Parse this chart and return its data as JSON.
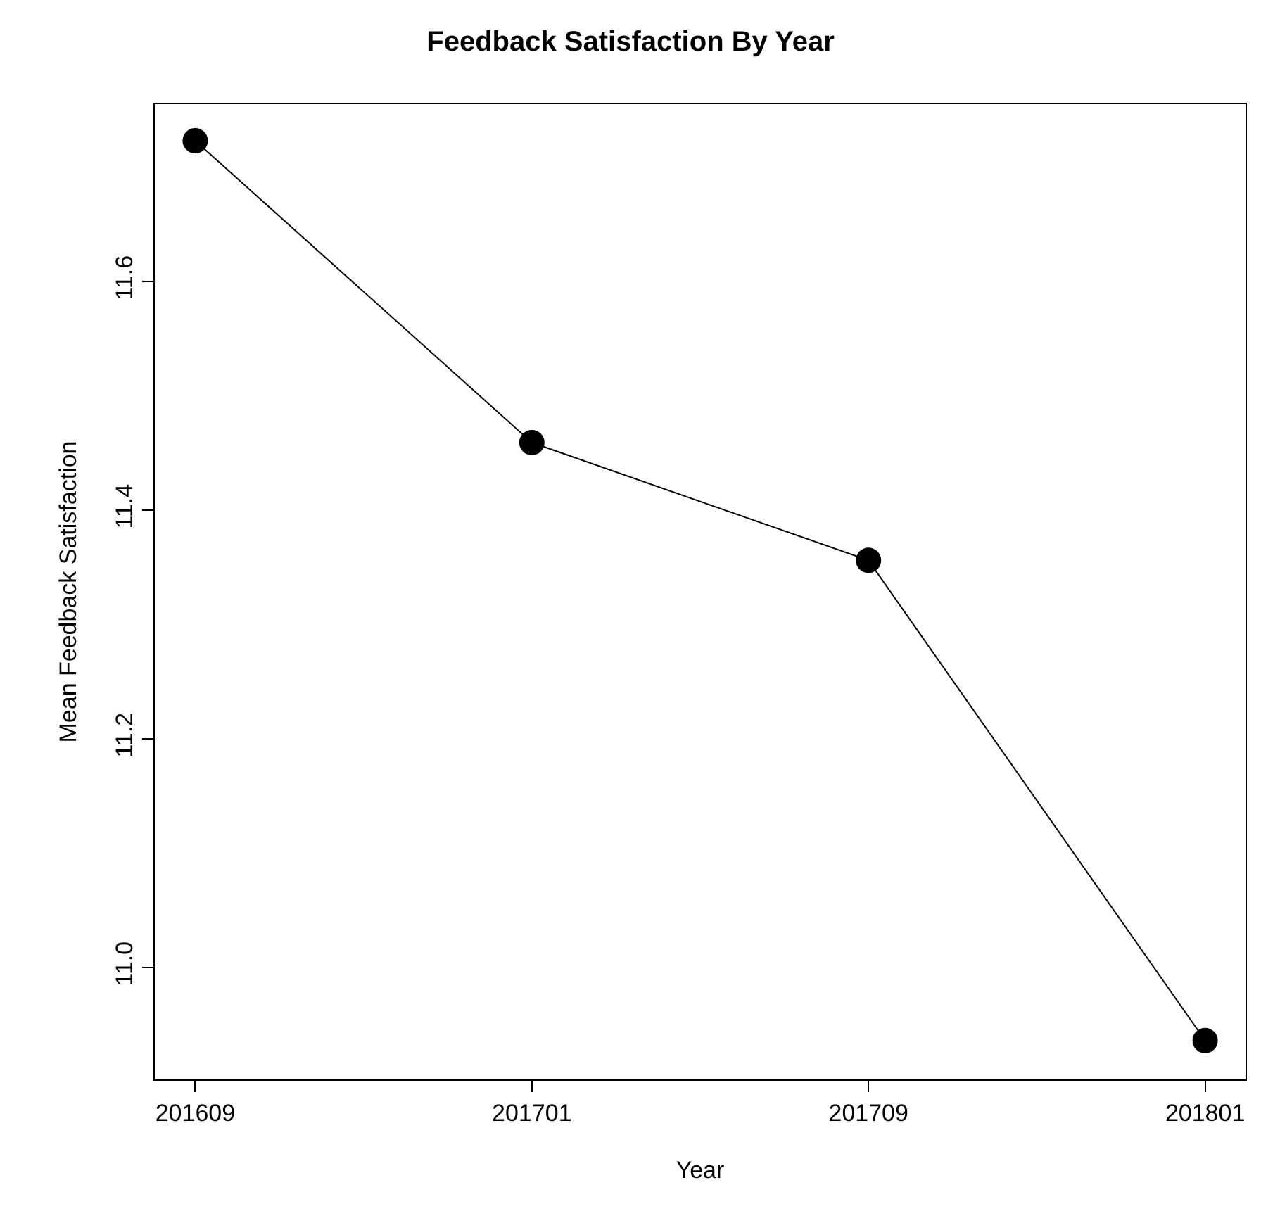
{
  "chart_data": {
    "type": "line",
    "title": "Feedback Satisfaction By Year",
    "xlabel": "Year",
    "ylabel": "Mean Feedback Satisfaction",
    "categories": [
      "201609",
      "201701",
      "201709",
      "201801"
    ],
    "series": [
      {
        "color": "#000000",
        "values": [
          11.723,
          11.459,
          11.356,
          10.936
        ]
      }
    ],
    "ylim": [
      10.902,
      11.755
    ],
    "yticks": [
      {
        "value": 11,
        "label": "11.0"
      },
      {
        "value": 11.2,
        "label": "11.2"
      },
      {
        "value": 11.4,
        "label": "11.4"
      },
      {
        "value": 11.6,
        "label": "11.6"
      }
    ],
    "grid": false,
    "legend": false,
    "marker": "circle",
    "line_style": "solid"
  }
}
